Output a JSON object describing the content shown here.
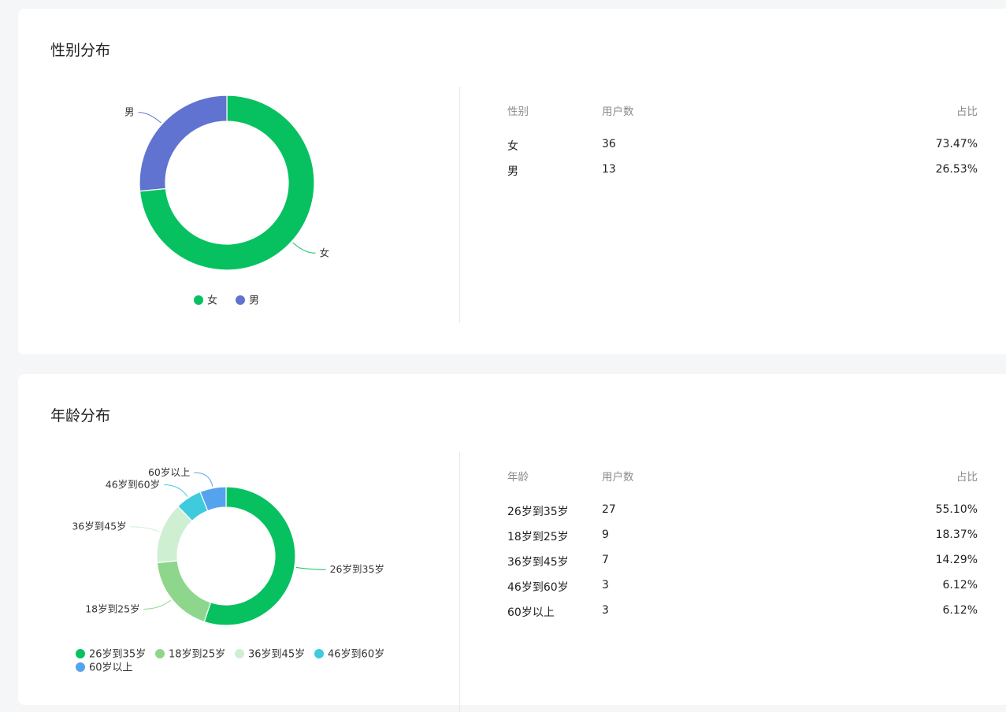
{
  "gender": {
    "title": "性别分布",
    "table": {
      "headers": [
        "性别",
        "用户数",
        "占比"
      ],
      "rows": [
        {
          "label": "女",
          "count": "36",
          "pct": "73.47%"
        },
        {
          "label": "男",
          "count": "13",
          "pct": "26.53%"
        }
      ]
    }
  },
  "age": {
    "title": "年龄分布",
    "table": {
      "headers": [
        "年龄",
        "用户数",
        "占比"
      ],
      "rows": [
        {
          "label": "26岁到35岁",
          "count": "27",
          "pct": "55.10%"
        },
        {
          "label": "18岁到25岁",
          "count": "9",
          "pct": "18.37%"
        },
        {
          "label": "36岁到45岁",
          "count": "7",
          "pct": "14.29%"
        },
        {
          "label": "46岁到60岁",
          "count": "3",
          "pct": "6.12%"
        },
        {
          "label": "60岁以上",
          "count": "3",
          "pct": "6.12%"
        }
      ]
    }
  },
  "chart_data": [
    {
      "type": "pie",
      "title": "性别分布",
      "categories": [
        "女",
        "男"
      ],
      "values": [
        36,
        13
      ],
      "colors": [
        "#07c160",
        "#6173d0"
      ],
      "legend": "bottom",
      "style": "donut"
    },
    {
      "type": "pie",
      "title": "年龄分布",
      "categories": [
        "26岁到35岁",
        "18岁到25岁",
        "36岁到45岁",
        "46岁到60岁",
        "60岁以上"
      ],
      "values": [
        27,
        9,
        7,
        3,
        3
      ],
      "colors": [
        "#07c160",
        "#8fd68d",
        "#cfefd3",
        "#3ecbde",
        "#55a3ec"
      ],
      "legend": "bottom",
      "style": "donut"
    }
  ]
}
